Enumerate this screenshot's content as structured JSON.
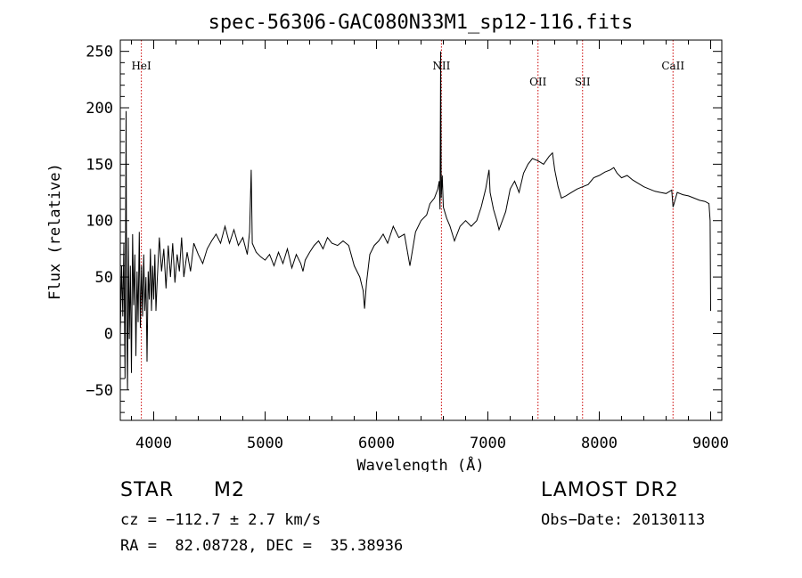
{
  "chart_data": {
    "type": "line",
    "title": "spec-56306-GAC080N33M1_sp12-116.fits",
    "xlabel": "Wavelength (Å)",
    "ylabel": "Flux (relative)",
    "xlim": [
      3700,
      9100
    ],
    "ylim": [
      -77,
      260
    ],
    "x_ticks": [
      4000,
      5000,
      6000,
      7000,
      8000,
      9000
    ],
    "y_ticks": [
      -50,
      0,
      50,
      100,
      150,
      200,
      250
    ],
    "x_tick_labels": [
      "4000",
      "5000",
      "6000",
      "7000",
      "8000",
      "9000"
    ],
    "y_tick_labels": [
      "−50",
      "0",
      "50",
      "100",
      "150",
      "200",
      "250"
    ],
    "grid": false,
    "line_color": "#000000",
    "marker_color": "#cc0000",
    "lines": [
      {
        "label": "HeI",
        "x": 3889
      },
      {
        "label": "NII",
        "x": 6583
      },
      {
        "label": "OII",
        "x": 7450
      },
      {
        "label": "SII",
        "x": 7850
      },
      {
        "label": "CaII",
        "x": 8662
      }
    ],
    "series": [
      {
        "values": [
          [
            3700,
            0
          ],
          [
            3712,
            60
          ],
          [
            3722,
            15
          ],
          [
            3732,
            80
          ],
          [
            3742,
            -40
          ],
          [
            3752,
            197
          ],
          [
            3757,
            20
          ],
          [
            3765,
            -50
          ],
          [
            3772,
            85
          ],
          [
            3781,
            -5
          ],
          [
            3790,
            60
          ],
          [
            3800,
            -35
          ],
          [
            3810,
            88
          ],
          [
            3820,
            25
          ],
          [
            3830,
            70
          ],
          [
            3840,
            -20
          ],
          [
            3850,
            55
          ],
          [
            3860,
            10
          ],
          [
            3870,
            90
          ],
          [
            3880,
            5
          ],
          [
            3890,
            60
          ],
          [
            3900,
            15
          ],
          [
            3910,
            70
          ],
          [
            3920,
            20
          ],
          [
            3930,
            50
          ],
          [
            3940,
            -25
          ],
          [
            3950,
            55
          ],
          [
            3960,
            30
          ],
          [
            3970,
            75
          ],
          [
            3980,
            20
          ],
          [
            3990,
            60
          ],
          [
            4000,
            30
          ],
          [
            4010,
            70
          ],
          [
            4020,
            20
          ],
          [
            4030,
            45
          ],
          [
            4050,
            85
          ],
          [
            4070,
            55
          ],
          [
            4090,
            75
          ],
          [
            4110,
            40
          ],
          [
            4130,
            78
          ],
          [
            4150,
            50
          ],
          [
            4170,
            80
          ],
          [
            4190,
            45
          ],
          [
            4210,
            70
          ],
          [
            4230,
            55
          ],
          [
            4250,
            85
          ],
          [
            4270,
            50
          ],
          [
            4300,
            72
          ],
          [
            4330,
            55
          ],
          [
            4360,
            80
          ],
          [
            4400,
            70
          ],
          [
            4440,
            62
          ],
          [
            4480,
            75
          ],
          [
            4520,
            82
          ],
          [
            4560,
            88
          ],
          [
            4600,
            80
          ],
          [
            4640,
            95
          ],
          [
            4680,
            80
          ],
          [
            4720,
            92
          ],
          [
            4760,
            78
          ],
          [
            4800,
            85
          ],
          [
            4840,
            70
          ],
          [
            4861,
            90
          ],
          [
            4875,
            145
          ],
          [
            4885,
            80
          ],
          [
            4920,
            72
          ],
          [
            4960,
            68
          ],
          [
            5000,
            65
          ],
          [
            5040,
            70
          ],
          [
            5080,
            60
          ],
          [
            5120,
            72
          ],
          [
            5160,
            62
          ],
          [
            5200,
            75
          ],
          [
            5240,
            58
          ],
          [
            5280,
            70
          ],
          [
            5320,
            62
          ],
          [
            5340,
            55
          ],
          [
            5360,
            65
          ],
          [
            5400,
            72
          ],
          [
            5440,
            78
          ],
          [
            5480,
            82
          ],
          [
            5520,
            75
          ],
          [
            5560,
            85
          ],
          [
            5600,
            80
          ],
          [
            5650,
            78
          ],
          [
            5700,
            82
          ],
          [
            5750,
            78
          ],
          [
            5800,
            60
          ],
          [
            5850,
            50
          ],
          [
            5880,
            38
          ],
          [
            5893,
            22
          ],
          [
            5910,
            45
          ],
          [
            5940,
            70
          ],
          [
            5980,
            78
          ],
          [
            6020,
            82
          ],
          [
            6060,
            88
          ],
          [
            6100,
            80
          ],
          [
            6150,
            95
          ],
          [
            6200,
            85
          ],
          [
            6250,
            88
          ],
          [
            6300,
            60
          ],
          [
            6350,
            90
          ],
          [
            6400,
            100
          ],
          [
            6450,
            105
          ],
          [
            6480,
            115
          ],
          [
            6520,
            120
          ],
          [
            6550,
            128
          ],
          [
            6563,
            135
          ],
          [
            6570,
            110
          ],
          [
            6576,
            250
          ],
          [
            6581,
            120
          ],
          [
            6590,
            140
          ],
          [
            6600,
            112
          ],
          [
            6630,
            102
          ],
          [
            6660,
            95
          ],
          [
            6700,
            82
          ],
          [
            6750,
            95
          ],
          [
            6800,
            100
          ],
          [
            6850,
            95
          ],
          [
            6900,
            100
          ],
          [
            6940,
            112
          ],
          [
            6980,
            128
          ],
          [
            7010,
            145
          ],
          [
            7020,
            125
          ],
          [
            7050,
            110
          ],
          [
            7080,
            100
          ],
          [
            7100,
            92
          ],
          [
            7130,
            100
          ],
          [
            7160,
            108
          ],
          [
            7200,
            128
          ],
          [
            7240,
            135
          ],
          [
            7280,
            125
          ],
          [
            7320,
            142
          ],
          [
            7360,
            150
          ],
          [
            7400,
            155
          ],
          [
            7450,
            153
          ],
          [
            7500,
            150
          ],
          [
            7550,
            157
          ],
          [
            7580,
            160
          ],
          [
            7600,
            145
          ],
          [
            7630,
            130
          ],
          [
            7660,
            120
          ],
          [
            7700,
            122
          ],
          [
            7750,
            125
          ],
          [
            7800,
            128
          ],
          [
            7850,
            130
          ],
          [
            7900,
            132
          ],
          [
            7950,
            138
          ],
          [
            8000,
            140
          ],
          [
            8050,
            143
          ],
          [
            8100,
            145
          ],
          [
            8130,
            147
          ],
          [
            8160,
            142
          ],
          [
            8200,
            138
          ],
          [
            8250,
            140
          ],
          [
            8300,
            136
          ],
          [
            8350,
            133
          ],
          [
            8400,
            130
          ],
          [
            8450,
            128
          ],
          [
            8500,
            126
          ],
          [
            8550,
            125
          ],
          [
            8600,
            124
          ],
          [
            8650,
            127
          ],
          [
            8662,
            112
          ],
          [
            8700,
            125
          ],
          [
            8750,
            123
          ],
          [
            8800,
            122
          ],
          [
            8850,
            120
          ],
          [
            8900,
            118
          ],
          [
            8950,
            117
          ],
          [
            8985,
            115
          ],
          [
            8995,
            100
          ],
          [
            9000,
            20
          ]
        ]
      }
    ]
  },
  "info": {
    "object_class": "STAR",
    "subclass": "M2",
    "survey": "LAMOST DR2",
    "cz": "cz = −112.7 ± 2.7 km/s",
    "obs_date": "Obs−Date: 20130113",
    "coords": "RA =  82.08728, DEC =  35.38936"
  }
}
